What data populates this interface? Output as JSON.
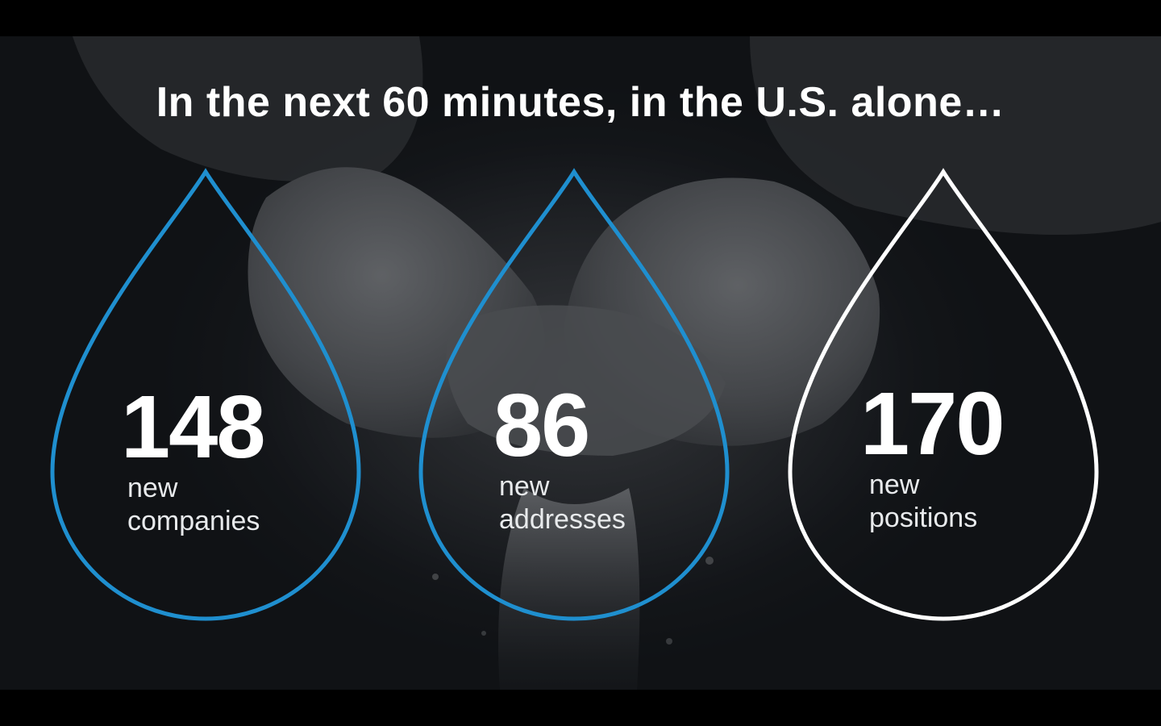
{
  "slide": {
    "title": "In the next 60 minutes, in the U.S. alone…",
    "stats": [
      {
        "number": "148",
        "line1": "new",
        "line2": "companies",
        "outline_color": "#1f8fcf"
      },
      {
        "number": "86",
        "line1": "new",
        "line2": "addresses",
        "outline_color": "#1f8fcf"
      },
      {
        "number": "170",
        "line1": "new",
        "line2": "positions",
        "outline_color": "#ffffff"
      }
    ],
    "background_image": "cupped-hands-water-photo"
  }
}
